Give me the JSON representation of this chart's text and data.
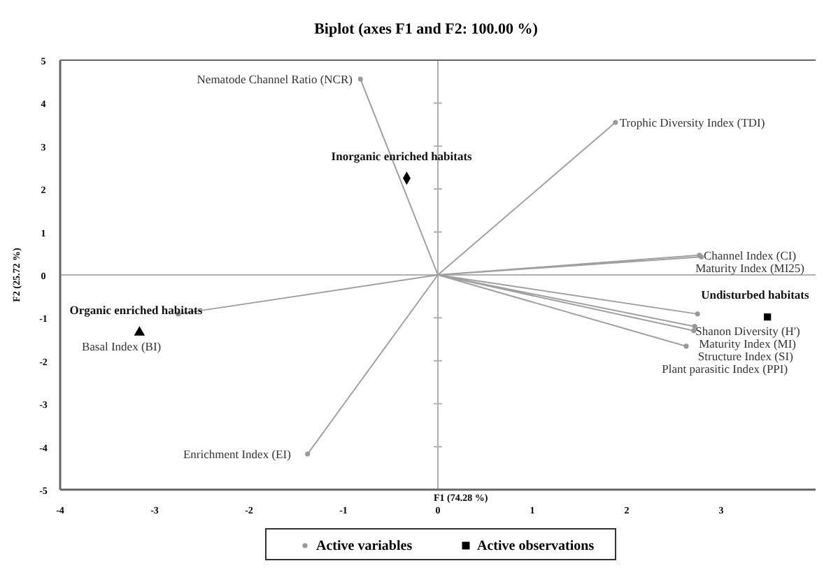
{
  "chart_data": {
    "type": "scatter",
    "title": "Biplot (axes F1 and F2: 100.00 %)",
    "xlabel": "F1 (74.28 %)",
    "ylabel": "F2 (25.72 %)",
    "xlim": [
      -4,
      4
    ],
    "ylim": [
      -5,
      5
    ],
    "xticks": [
      -4,
      -3,
      -2,
      -1,
      0,
      1,
      2,
      3
    ],
    "yticks": [
      -5,
      -4,
      -3,
      -2,
      -1,
      0,
      1,
      2,
      3,
      4,
      5
    ],
    "legend": "bottom",
    "series": [
      {
        "type": "line",
        "color": "#a0a0a0",
        "marker": "none",
        "x": [
          0,
          -0.82,
          0,
          1.88,
          0,
          2.77,
          0,
          2.79,
          0,
          2.75,
          0,
          2.72,
          0,
          2.71,
          0,
          2.63,
          0,
          -2.75,
          0,
          -1.38
        ],
        "values": [
          0,
          4.56,
          0,
          3.55,
          0,
          0.46,
          0,
          0.42,
          0,
          -0.91,
          0,
          -1.2,
          0,
          -1.3,
          0,
          -1.66,
          0,
          -0.91,
          0,
          -4.17
        ]
      },
      {
        "name": "Active variables",
        "color": "#999999",
        "marker": "circle",
        "x": [
          -0.82,
          1.88,
          2.77,
          2.79,
          2.75,
          2.72,
          2.71,
          2.63,
          -2.75,
          -1.38
        ],
        "values": [
          4.56,
          3.55,
          0.46,
          0.42,
          -0.91,
          -1.2,
          -1.3,
          -1.66,
          -0.91,
          -4.17
        ]
      },
      {
        "name": "Active observations",
        "color": "#000000",
        "marker": "square",
        "x": [
          3.49
        ],
        "values": [
          -0.98
        ]
      },
      {
        "color": "#000000",
        "marker": "triangle",
        "x": [
          -3.16
        ],
        "values": [
          -1.34
        ]
      },
      {
        "color": "#000000",
        "marker": "diamond",
        "x": [
          -0.33
        ],
        "values": [
          2.25
        ]
      }
    ],
    "annotations": [
      {
        "text": "Undisturbed habitats",
        "x": 3.49,
        "y": -0.98
      },
      {
        "text": "Organic enriched habitats",
        "x": -3.16,
        "y": -1.34
      },
      {
        "text": "Inorganic enriched habitats",
        "x": -0.33,
        "y": 2.25
      },
      {
        "text": "Nematode Channel Ratio (NCR)",
        "x": -0.82,
        "y": 4.56
      },
      {
        "text": "Trophic Diversity Index (TDI)",
        "x": 1.88,
        "y": 3.55
      },
      {
        "text": "Channel Index (CI)",
        "x": 2.77,
        "y": 0.46
      },
      {
        "text": "Maturity Index (MI25)",
        "x": 2.79,
        "y": 0.42
      },
      {
        "text": "Shanon Diversity (H')",
        "x": 2.75,
        "y": -0.91
      },
      {
        "text": "Maturity Index (MI)",
        "x": 2.72,
        "y": -1.2
      },
      {
        "text": "Structure Index (SI)",
        "x": 2.71,
        "y": -1.3
      },
      {
        "text": "Plant parasitic Index (PPI)",
        "x": 2.63,
        "y": -1.66
      },
      {
        "text": "Basal Index (BI)",
        "x": -2.75,
        "y": -0.91
      },
      {
        "text": "Enrichment Index (EI)",
        "x": -1.38,
        "y": -4.17
      }
    ]
  }
}
